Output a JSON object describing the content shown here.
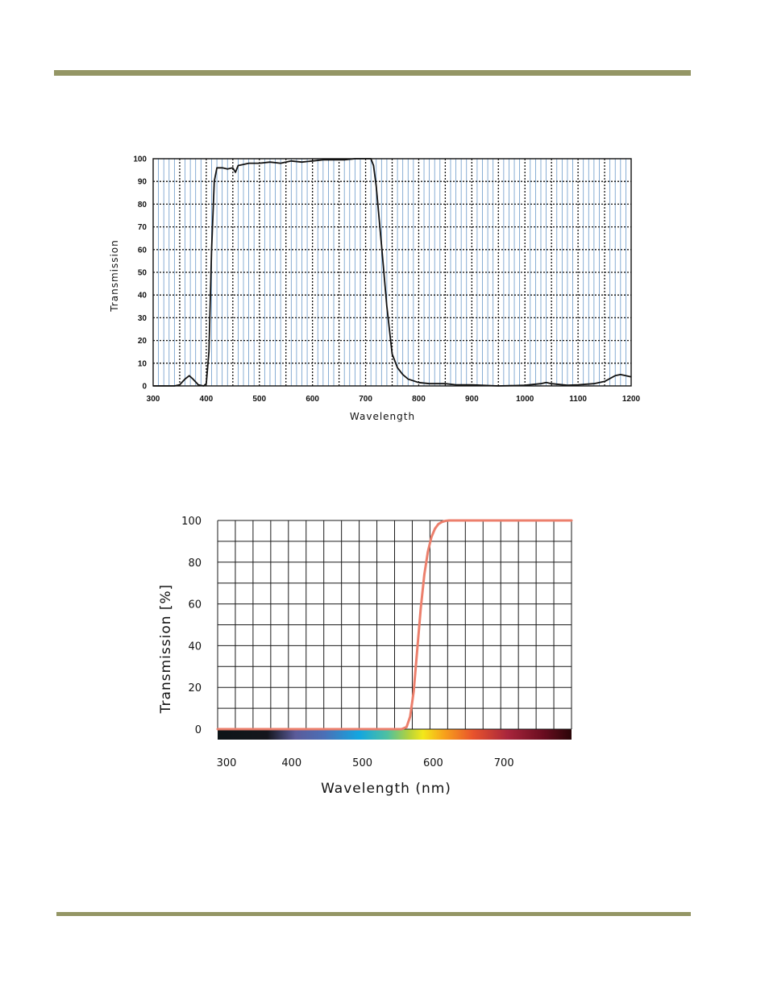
{
  "page": {
    "accent_color": "#949665"
  },
  "chart_data": [
    {
      "type": "line",
      "title": "",
      "xlabel": "Wavelength",
      "ylabel": "Transmission",
      "xlim": [
        300,
        1200
      ],
      "ylim": [
        0,
        100
      ],
      "x_ticks": [
        300,
        400,
        500,
        600,
        700,
        800,
        900,
        1000,
        1100,
        1200
      ],
      "y_ticks": [
        0,
        10,
        20,
        30,
        40,
        50,
        60,
        70,
        80,
        90,
        100
      ],
      "grid": true,
      "grid_color": "#3a78b8",
      "line_color": "#111111",
      "series": [
        {
          "x": [
            300,
            340,
            350,
            360,
            368,
            375,
            385,
            395,
            400,
            405,
            410,
            415,
            420,
            430,
            440,
            450,
            455,
            460,
            470,
            480,
            500,
            520,
            540,
            560,
            580,
            600,
            620,
            640,
            660,
            680,
            700,
            710,
            715,
            720,
            730,
            740,
            750,
            760,
            770,
            780,
            800,
            820,
            850,
            870,
            900,
            950,
            1000,
            1030,
            1040,
            1050,
            1080,
            1100,
            1130,
            1150,
            1170,
            1180,
            1200
          ],
          "y": [
            0,
            0,
            0.5,
            3,
            4.5,
            3,
            0.5,
            0,
            1,
            15,
            60,
            90,
            96,
            96,
            95.5,
            96,
            94,
            97,
            97.5,
            98,
            98,
            98.5,
            98,
            99,
            98.5,
            99,
            99.5,
            99.5,
            99.5,
            100,
            100,
            100,
            97,
            88,
            62,
            35,
            14,
            8,
            5,
            3,
            1.5,
            1,
            1,
            0.5,
            0.5,
            0,
            0.3,
            1,
            1.5,
            1,
            0.3,
            0.5,
            1,
            2,
            4.5,
            5,
            4
          ]
        }
      ]
    },
    {
      "type": "line",
      "title": "",
      "xlabel": "Wavelength (nm)",
      "ylabel": "Transmission [%]",
      "xlim": [
        300,
        800
      ],
      "ylim": [
        0,
        100
      ],
      "x_ticks": [
        300,
        400,
        500,
        600,
        700
      ],
      "y_ticks": [
        0,
        20,
        40,
        60,
        80,
        100
      ],
      "grid": true,
      "line_color": "#ec7f6c",
      "series": [
        {
          "x": [
            300,
            400,
            500,
            560,
            567,
            572,
            577,
            582,
            587,
            592,
            597,
            602,
            607,
            612,
            617,
            622,
            627,
            640,
            700,
            800
          ],
          "y": [
            0,
            0,
            0,
            0,
            1,
            6,
            18,
            38,
            58,
            74,
            85,
            92,
            96,
            98.3,
            99.3,
            99.8,
            100,
            100,
            100,
            100
          ]
        }
      ],
      "spectrum_bar": true
    }
  ]
}
